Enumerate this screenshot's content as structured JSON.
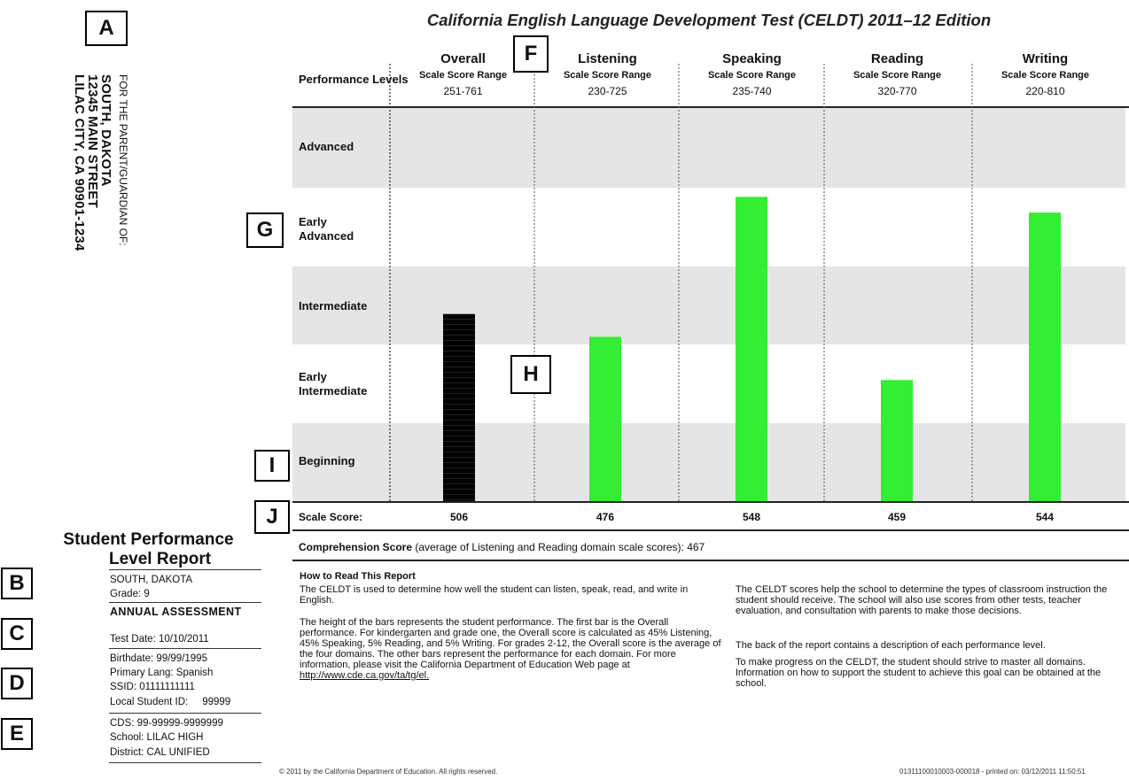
{
  "markers": [
    "A",
    "B",
    "C",
    "D",
    "E",
    "F",
    "G",
    "H",
    "I",
    "J"
  ],
  "address": {
    "for_line": "FOR THE PARENT/GUARDIAN OF:",
    "name": "SOUTH, DAKOTA",
    "street": "12345 MAIN STREET",
    "city": "LILAC CITY, CA 90901-1234"
  },
  "title": "California English Language Development Test (CELDT) 2011–12 Edition",
  "performance_levels_label": "Performance Levels",
  "scale_score_range_label": "Scale Score Range",
  "columns": [
    {
      "name": "Overall",
      "range": "251-761"
    },
    {
      "name": "Listening",
      "range": "230-725"
    },
    {
      "name": "Speaking",
      "range": "235-740"
    },
    {
      "name": "Reading",
      "range": "320-770"
    },
    {
      "name": "Writing",
      "range": "220-810"
    }
  ],
  "levels": [
    "Advanced",
    "Early Advanced",
    "Intermediate",
    "Early Intermediate",
    "Beginning"
  ],
  "chart_data": {
    "type": "bar",
    "categories": [
      "Overall",
      "Listening",
      "Speaking",
      "Reading",
      "Writing"
    ],
    "values": [
      506,
      476,
      548,
      459,
      544
    ],
    "level_bands": [
      "Beginning",
      "Early Intermediate",
      "Intermediate",
      "Early Advanced",
      "Advanced"
    ],
    "bar_levels": [
      2.38,
      2.09,
      3.87,
      1.54,
      3.67
    ],
    "colors": [
      "#000000",
      "#33ee33",
      "#33ee33",
      "#33ee33",
      "#33ee33"
    ],
    "title": "California English Language Development Test (CELDT) 2011–12 Edition"
  },
  "scale_score_label": "Scale Score:",
  "comprehension": {
    "bold": "Comprehension Score",
    "rest": " (average of Listening and Reading domain scale scores): 467"
  },
  "how_to_read": {
    "heading": "How to Read This Report",
    "p1": "The CELDT is used to determine how well the student can listen, speak, read, and write in English.",
    "p2": "The height of the bars represents the student performance. The first bar is the Overall performance. For kindergarten and grade one, the Overall score is calculated as 45% Listening, 45% Speaking, 5% Reading, and 5% Writing. For grades 2-12, the Overall score is the average of the four domains. The other bars represent the performance for each domain. For more information, please visit the California Department of Education Web page at ",
    "link": "http://www.cde.ca.gov/ta/tg/el.",
    "p3": "The CELDT scores help the school to determine the types of classroom instruction the student should receive. The school will also use scores from other tests, teacher evaluation, and consultation with parents to make those decisions.",
    "p4": "The back of the report contains a description of each performance level.",
    "p5": "To make progress on the CELDT, the student should strive to master all domains. Information on how to support the student to achieve this goal can be obtained at the school."
  },
  "student_panel": {
    "title1": "Student Performance",
    "title2": "Level Report",
    "name": "SOUTH, DAKOTA",
    "grade": "Grade: 9",
    "assessment": "ANNUAL ASSESSMENT",
    "test_date": "Test Date: 10/10/2011",
    "birthdate": "Birthdate: 99/99/1995",
    "primary_lang": "Primary Lang: Spanish",
    "ssid": "SSID: 01111111111",
    "local_id": "Local Student ID:     99999",
    "cds": "CDS: 99-99999-9999999",
    "school": "School: LILAC HIGH",
    "district": "District: CAL UNIFIED"
  },
  "footer": {
    "copyright": "© 2011 by the California Department of Education. All rights reserved.",
    "printed": "01311100010003-000018 - printed on: 03/12/2011 11:50:51"
  }
}
